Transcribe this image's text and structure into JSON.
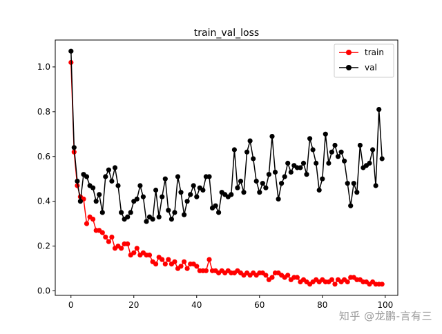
{
  "watermark": "知乎 @龙鹏-言有三",
  "chart_data": {
    "type": "line",
    "title": "train_val_loss",
    "xlabel": "",
    "ylabel": "",
    "xlim": [
      -5,
      104
    ],
    "ylim": [
      -0.02,
      1.12
    ],
    "xticks": [
      0,
      20,
      40,
      60,
      80,
      100
    ],
    "yticks": [
      0.0,
      0.2,
      0.4,
      0.6,
      0.8,
      1.0
    ],
    "grid": false,
    "legend": "top-right",
    "series": [
      {
        "name": "train",
        "color": "#ff0000",
        "marker": "circle",
        "x": [
          0,
          1,
          2,
          3,
          4,
          5,
          6,
          7,
          8,
          9,
          10,
          11,
          12,
          13,
          14,
          15,
          16,
          17,
          18,
          19,
          20,
          21,
          22,
          23,
          24,
          25,
          26,
          27,
          28,
          29,
          30,
          31,
          32,
          33,
          34,
          35,
          36,
          37,
          38,
          39,
          40,
          41,
          42,
          43,
          44,
          45,
          46,
          47,
          48,
          49,
          50,
          51,
          52,
          53,
          54,
          55,
          56,
          57,
          58,
          59,
          60,
          61,
          62,
          63,
          64,
          65,
          66,
          67,
          68,
          69,
          70,
          71,
          72,
          73,
          74,
          75,
          76,
          77,
          78,
          79,
          80,
          81,
          82,
          83,
          84,
          85,
          86,
          87,
          88,
          89,
          90,
          91,
          92,
          93,
          94,
          95,
          96,
          97,
          98,
          99
        ],
        "values": [
          1.02,
          0.62,
          0.47,
          0.42,
          0.41,
          0.3,
          0.33,
          0.32,
          0.27,
          0.27,
          0.26,
          0.24,
          0.22,
          0.24,
          0.19,
          0.2,
          0.19,
          0.21,
          0.21,
          0.16,
          0.17,
          0.19,
          0.16,
          0.17,
          0.16,
          0.16,
          0.13,
          0.12,
          0.15,
          0.14,
          0.12,
          0.14,
          0.12,
          0.13,
          0.1,
          0.11,
          0.13,
          0.1,
          0.12,
          0.12,
          0.11,
          0.09,
          0.09,
          0.09,
          0.14,
          0.09,
          0.09,
          0.08,
          0.09,
          0.08,
          0.09,
          0.08,
          0.08,
          0.09,
          0.08,
          0.07,
          0.08,
          0.07,
          0.08,
          0.07,
          0.08,
          0.08,
          0.07,
          0.05,
          0.06,
          0.08,
          0.08,
          0.07,
          0.06,
          0.07,
          0.05,
          0.06,
          0.06,
          0.04,
          0.05,
          0.04,
          0.03,
          0.04,
          0.05,
          0.04,
          0.05,
          0.04,
          0.04,
          0.05,
          0.03,
          0.05,
          0.04,
          0.05,
          0.04,
          0.06,
          0.06,
          0.05,
          0.05,
          0.04,
          0.04,
          0.03,
          0.04,
          0.03,
          0.03,
          0.03
        ]
      },
      {
        "name": "val",
        "color": "#000000",
        "marker": "circle",
        "x": [
          0,
          1,
          2,
          3,
          4,
          5,
          6,
          7,
          8,
          9,
          10,
          11,
          12,
          13,
          14,
          15,
          16,
          17,
          18,
          19,
          20,
          21,
          22,
          23,
          24,
          25,
          26,
          27,
          28,
          29,
          30,
          31,
          32,
          33,
          34,
          35,
          36,
          37,
          38,
          39,
          40,
          41,
          42,
          43,
          44,
          45,
          46,
          47,
          48,
          49,
          50,
          51,
          52,
          53,
          54,
          55,
          56,
          57,
          58,
          59,
          60,
          61,
          62,
          63,
          64,
          65,
          66,
          67,
          68,
          69,
          70,
          71,
          72,
          73,
          74,
          75,
          76,
          77,
          78,
          79,
          80,
          81,
          82,
          83,
          84,
          85,
          86,
          87,
          88,
          89,
          90,
          91,
          92,
          93,
          94,
          95,
          96,
          97,
          98,
          99
        ],
        "values": [
          1.07,
          0.64,
          0.49,
          0.4,
          0.52,
          0.51,
          0.47,
          0.46,
          0.4,
          0.43,
          0.35,
          0.51,
          0.54,
          0.49,
          0.55,
          0.47,
          0.35,
          0.32,
          0.33,
          0.35,
          0.4,
          0.41,
          0.47,
          0.42,
          0.31,
          0.33,
          0.32,
          0.45,
          0.33,
          0.42,
          0.5,
          0.36,
          0.32,
          0.35,
          0.51,
          0.44,
          0.34,
          0.4,
          0.43,
          0.47,
          0.42,
          0.46,
          0.45,
          0.51,
          0.51,
          0.37,
          0.38,
          0.35,
          0.44,
          0.43,
          0.42,
          0.43,
          0.63,
          0.46,
          0.49,
          0.44,
          0.62,
          0.67,
          0.59,
          0.49,
          0.44,
          0.48,
          0.46,
          0.52,
          0.69,
          0.53,
          0.41,
          0.48,
          0.51,
          0.57,
          0.53,
          0.56,
          0.55,
          0.55,
          0.57,
          0.52,
          0.68,
          0.63,
          0.57,
          0.45,
          0.5,
          0.7,
          0.57,
          0.62,
          0.65,
          0.6,
          0.62,
          0.58,
          0.48,
          0.38,
          0.48,
          0.44,
          0.65,
          0.55,
          0.56,
          0.57,
          0.63,
          0.47,
          0.81,
          0.59
        ]
      }
    ]
  }
}
